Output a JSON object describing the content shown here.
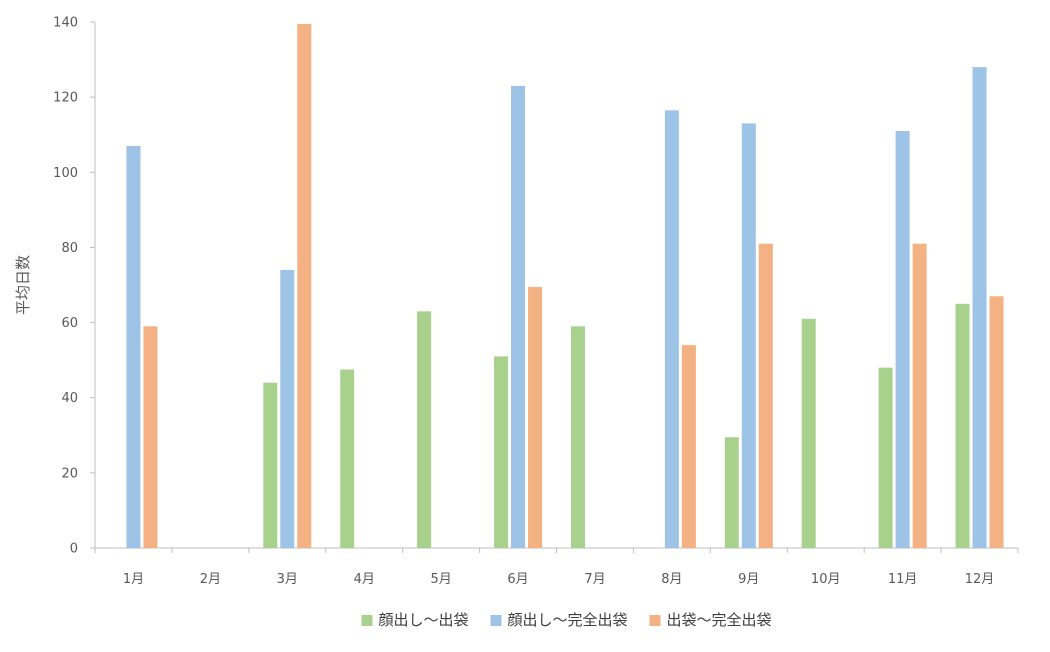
{
  "chart_data": {
    "type": "bar",
    "title": "",
    "xlabel": "",
    "ylabel": "平均日数",
    "ylim": [
      0,
      140
    ],
    "yticks": [
      0,
      20,
      40,
      60,
      80,
      100,
      120,
      140
    ],
    "grid": false,
    "legend_position": "bottom",
    "categories": [
      "1月",
      "2月",
      "3月",
      "4月",
      "5月",
      "6月",
      "7月",
      "8月",
      "9月",
      "10月",
      "11月",
      "12月"
    ],
    "series": [
      {
        "name": "顔出し～出袋",
        "color": "#a9d18e",
        "values": [
          null,
          null,
          44,
          47.5,
          63,
          51,
          59,
          null,
          29.5,
          61,
          48,
          65
        ]
      },
      {
        "name": "顔出し～完全出袋",
        "color": "#9dc3e6",
        "values": [
          107,
          null,
          74,
          null,
          null,
          123,
          null,
          116.5,
          113,
          null,
          111,
          128
        ]
      },
      {
        "name": "出袋～完全出袋",
        "color": "#f4b183",
        "values": [
          59,
          null,
          139.5,
          null,
          null,
          69.5,
          null,
          54,
          81,
          null,
          81,
          67
        ]
      }
    ]
  }
}
